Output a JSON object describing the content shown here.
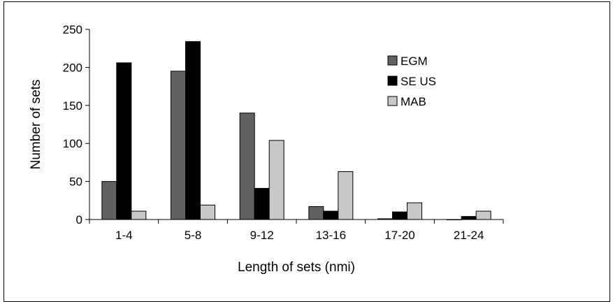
{
  "chart_data": {
    "type": "bar",
    "title": "",
    "xlabel": "Length of sets (nmi)",
    "ylabel": "Number of sets",
    "ylim": [
      0,
      250
    ],
    "yticks": [
      0,
      50,
      100,
      150,
      200,
      250
    ],
    "categories": [
      "1-4",
      "5-8",
      "9-12",
      "13-16",
      "17-20",
      "21-24"
    ],
    "series": [
      {
        "name": "EGM",
        "color": "#616161",
        "values": [
          50,
          195,
          140,
          17,
          1,
          0
        ]
      },
      {
        "name": "SE US",
        "color": "#000000",
        "values": [
          206,
          234,
          41,
          11,
          10,
          4
        ]
      },
      {
        "name": "MAB",
        "color": "#c8c8c8",
        "values": [
          11,
          19,
          104,
          63,
          22,
          11
        ]
      }
    ],
    "legend_position": "right",
    "grid": false
  }
}
